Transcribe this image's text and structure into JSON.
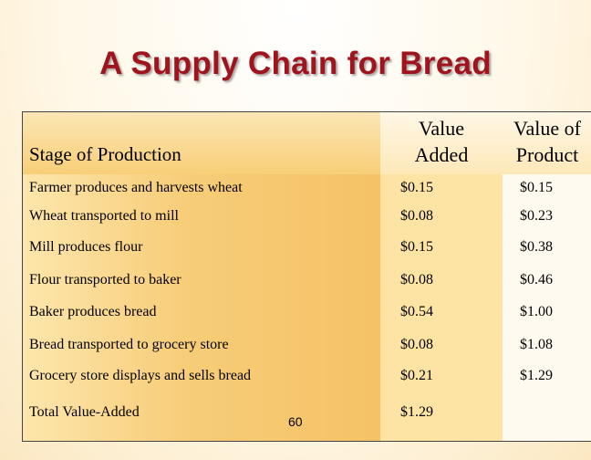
{
  "title": "A Supply Chain for Bread",
  "columns": {
    "stage": "Stage of Production",
    "added_line1": "Value",
    "added_line2": "Added",
    "product_line1": "Value of",
    "product_line2": "Product"
  },
  "rows": [
    {
      "stage": "Farmer produces and harvests wheat",
      "added": "$0.15",
      "value": "$0.15"
    },
    {
      "stage": "Wheat transported to mill",
      "added": "$0.08",
      "value": "$0.23"
    },
    {
      "stage": "Mill produces flour",
      "added": "$0.15",
      "value": "$0.38"
    },
    {
      "stage": "Flour transported to baker",
      "added": "$0.08",
      "value": "$0.46"
    },
    {
      "stage": "Baker produces bread",
      "added": "$0.54",
      "value": "$1.00"
    },
    {
      "stage": "Bread transported to grocery store",
      "added": "$0.08",
      "value": "$1.08"
    },
    {
      "stage": "Grocery store displays and sells bread",
      "added": "$0.21",
      "value": "$1.29"
    }
  ],
  "total": {
    "stage": "Total Value-Added",
    "added": "$1.29",
    "value": ""
  },
  "page_number": "60"
}
